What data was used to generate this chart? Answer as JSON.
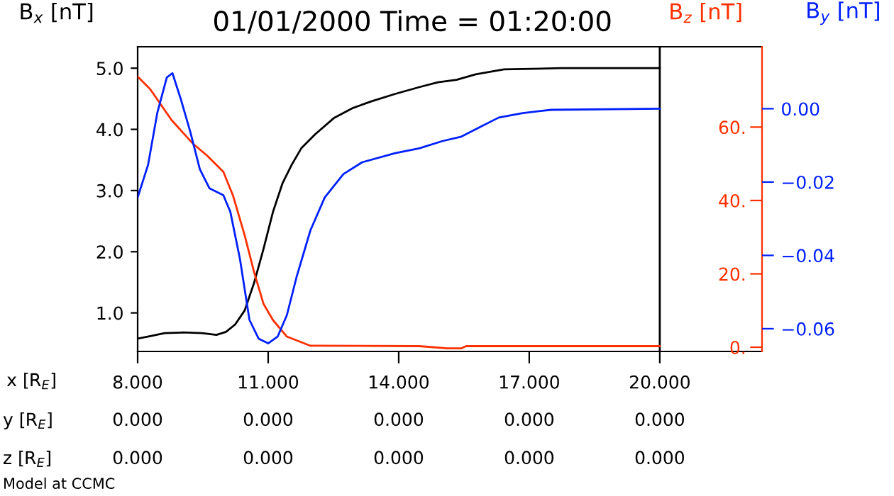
{
  "chart_data": {
    "type": "line",
    "title": "01/01/2000 Time = 01:20:00",
    "xlabel": "x [R$_{E}$]",
    "ylabel": "B$_{x}$ [nT]",
    "y2label": "B$_{z}$ [nT]",
    "y3label": "B$_{y}$ [nT]",
    "xlim": [
      8,
      22.35
    ],
    "xticks": [
      {
        "value": 8,
        "label": "8.000"
      },
      {
        "value": 11,
        "label": "11.000"
      },
      {
        "value": 14,
        "label": "14.000"
      },
      {
        "value": 17,
        "label": "17.000"
      },
      {
        "value": 20,
        "label": "20.000"
      }
    ],
    "ylim": [
      0.37,
      5.35
    ],
    "yticks": [
      {
        "value": 1,
        "label": "1.0"
      },
      {
        "value": 2,
        "label": "2.0"
      },
      {
        "value": 3,
        "label": "3.0"
      },
      {
        "value": 4,
        "label": "4.0"
      },
      {
        "value": 5,
        "label": "5.0"
      }
    ],
    "y2lim": [
      -1.15,
      81.9
    ],
    "y2ticks": [
      {
        "value": 0,
        "label": "0."
      },
      {
        "value": 20,
        "label": "20."
      },
      {
        "value": 40,
        "label": "40."
      },
      {
        "value": 60,
        "label": "60."
      }
    ],
    "y3lim": [
      -0.0662,
      0.0169
    ],
    "y3ticks": [
      {
        "value": -0.06,
        "label": "−0.06"
      },
      {
        "value": -0.04,
        "label": "−0.04"
      },
      {
        "value": -0.02,
        "label": "−0.02"
      },
      {
        "value": 0,
        "label": "0.00"
      }
    ],
    "series": [
      {
        "color": "#000000",
        "x": [
          8,
          8.29,
          8.62,
          9.05,
          9.48,
          9.81,
          10.03,
          10.24,
          10.46,
          10.68,
          10.89,
          11.11,
          11.33,
          11.54,
          11.76,
          12.08,
          12.52,
          12.95,
          13.38,
          13.92,
          14.47,
          14.9,
          15.33,
          15.77,
          16.42,
          17.72,
          20
        ],
        "values": [
          0.58,
          0.62,
          0.67,
          0.68,
          0.67,
          0.64,
          0.69,
          0.81,
          1.04,
          1.5,
          2.04,
          2.65,
          3.12,
          3.42,
          3.69,
          3.92,
          4.19,
          4.35,
          4.46,
          4.58,
          4.69,
          4.77,
          4.81,
          4.9,
          4.98,
          5.0,
          5.0
        ]
      },
      {
        "color": "#ff3000",
        "axis": "y2",
        "x": [
          8,
          8.29,
          8.78,
          9.27,
          9.59,
          9.97,
          10.19,
          10.46,
          10.68,
          10.89,
          11.11,
          11.43,
          11.97,
          14.47,
          15.12,
          15.44,
          15.55,
          20
        ],
        "values": [
          73.8,
          70.3,
          61.9,
          55.5,
          52.3,
          47.8,
          41.4,
          30.5,
          20.3,
          11.9,
          7.4,
          2.9,
          0.4,
          0.3,
          -0.3,
          -0.3,
          0.3,
          0.3
        ]
      },
      {
        "color": "#0020ff",
        "axis": "y3",
        "x": [
          8,
          8.24,
          8.45,
          8.67,
          8.8,
          8.99,
          9.21,
          9.43,
          9.65,
          9.97,
          10.13,
          10.35,
          10.57,
          10.78,
          11,
          11.22,
          11.43,
          11.65,
          11.97,
          12.3,
          12.73,
          13.16,
          13.92,
          14.47,
          15.01,
          15.44,
          15.87,
          16.3,
          16.85,
          17.5,
          20
        ],
        "values": [
          -0.0242,
          -0.0153,
          -0.0012,
          0.0085,
          0.0097,
          0.0027,
          -0.0063,
          -0.0165,
          -0.0217,
          -0.0236,
          -0.0281,
          -0.0409,
          -0.0576,
          -0.0627,
          -0.064,
          -0.0621,
          -0.0563,
          -0.046,
          -0.0332,
          -0.0242,
          -0.0178,
          -0.0146,
          -0.0121,
          -0.0108,
          -0.0088,
          -0.0076,
          -0.005,
          -0.0024,
          -0.0012,
          -0.0003,
          0.0
        ]
      }
    ],
    "ref_lines": [
      {
        "axis": "x",
        "value": 20,
        "color": "#000000"
      }
    ],
    "annotations": [
      "y [R$_{E}$]",
      "0.000",
      "0.000",
      "0.000",
      "0.000",
      "0.000",
      "z [R$_{E}$]",
      "0.000",
      "0.000",
      "0.000",
      "0.000",
      "0.000",
      "Model at CCMC"
    ]
  }
}
